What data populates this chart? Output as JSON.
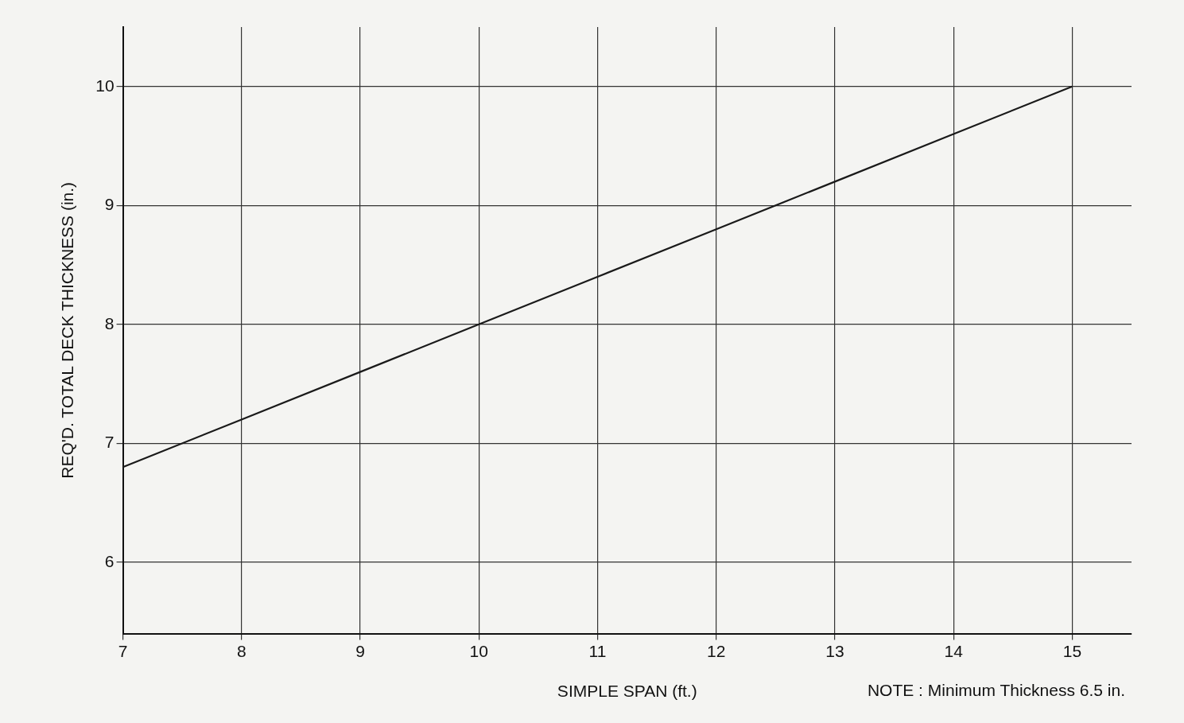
{
  "chart_data": {
    "type": "line",
    "xlabel": "SIMPLE SPAN (ft.)",
    "ylabel": "REQ'D. TOTAL DECK THICKNESS (in.)",
    "annotations": [
      "NOTE : Minimum Thickness 6.5 in."
    ],
    "x": [
      7,
      8,
      9,
      10,
      11,
      12,
      13,
      14,
      15
    ],
    "series": [
      {
        "color": "#1a1a1a",
        "values": [
          6.8,
          7.2,
          7.6,
          8.0,
          8.4,
          8.8,
          9.2,
          9.6,
          10.0
        ]
      }
    ],
    "xlim": [
      7,
      15.5
    ],
    "xticks": [
      7,
      8,
      9,
      10,
      11,
      12,
      13,
      14,
      15
    ],
    "ylim": [
      5.4,
      10.5
    ],
    "yticks": [
      6,
      7,
      8,
      9,
      10
    ],
    "grid": true,
    "legend": false,
    "marker": "none",
    "line_style": "solid"
  }
}
